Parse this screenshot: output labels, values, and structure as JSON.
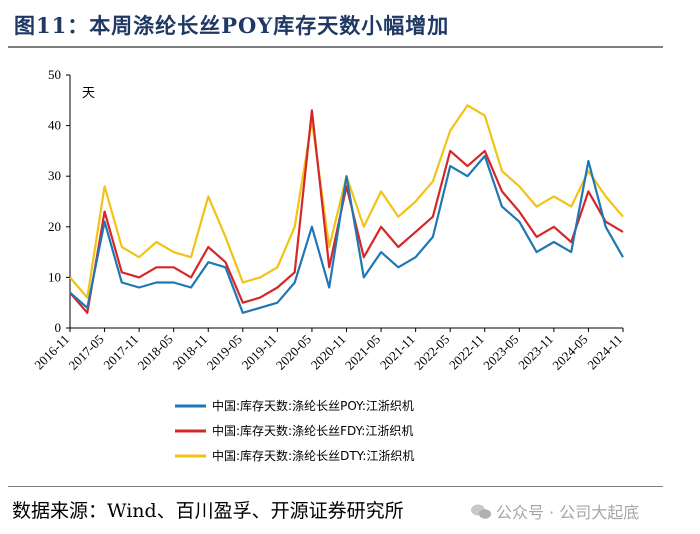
{
  "title": "图11：本周涤纶长丝POY库存天数小幅增加",
  "source": "数据来源：Wind、百川盈孚、开源证券研究所",
  "watermark": "公众号 · 公司大起底",
  "chart_data": {
    "type": "line",
    "unit_label": "天",
    "ylim": [
      0,
      50
    ],
    "yticks": [
      0,
      10,
      20,
      30,
      40,
      50
    ],
    "xticks": [
      "2016-11",
      "2017-05",
      "2017-11",
      "2018-05",
      "2018-11",
      "2019-05",
      "2019-11",
      "2020-05",
      "2020-11",
      "2021-05",
      "2021-11",
      "2022-05",
      "2022-11",
      "2023-05",
      "2023-11",
      "2024-05",
      "2024-11"
    ],
    "x": [
      "2016-11",
      "2017-02",
      "2017-05",
      "2017-08",
      "2017-11",
      "2018-02",
      "2018-05",
      "2018-08",
      "2018-11",
      "2019-02",
      "2019-05",
      "2019-08",
      "2019-11",
      "2020-02",
      "2020-05",
      "2020-08",
      "2020-11",
      "2021-02",
      "2021-05",
      "2021-08",
      "2021-11",
      "2022-02",
      "2022-05",
      "2022-08",
      "2022-11",
      "2023-02",
      "2023-05",
      "2023-08",
      "2023-11",
      "2024-02",
      "2024-05",
      "2024-08",
      "2024-11"
    ],
    "series": [
      {
        "name": "中国:库存天数:涤纶长丝POY:江浙织机",
        "color": "#1f77b4",
        "values": [
          7,
          4,
          21,
          9,
          8,
          9,
          9,
          8,
          13,
          12,
          3,
          4,
          5,
          9,
          20,
          8,
          30,
          10,
          15,
          12,
          14,
          18,
          32,
          30,
          34,
          24,
          21,
          15,
          17,
          15,
          33,
          20,
          14
        ]
      },
      {
        "name": "中国:库存天数:涤纶长丝FDY:江浙织机",
        "color": "#d62728",
        "values": [
          7,
          3,
          23,
          11,
          10,
          12,
          12,
          10,
          16,
          13,
          5,
          6,
          8,
          11,
          43,
          12,
          28,
          14,
          20,
          16,
          19,
          22,
          35,
          32,
          35,
          27,
          23,
          18,
          20,
          17,
          27,
          21,
          19
        ]
      },
      {
        "name": "中国:库存天数:涤纶长丝DTY:江浙织机",
        "color": "#f2c314",
        "values": [
          10,
          6,
          28,
          16,
          14,
          17,
          15,
          14,
          26,
          18,
          9,
          10,
          12,
          20,
          41,
          16,
          30,
          20,
          27,
          22,
          25,
          29,
          39,
          44,
          42,
          31,
          28,
          24,
          26,
          24,
          31,
          26,
          22
        ]
      }
    ],
    "legend_position": "bottom",
    "grid": false
  }
}
